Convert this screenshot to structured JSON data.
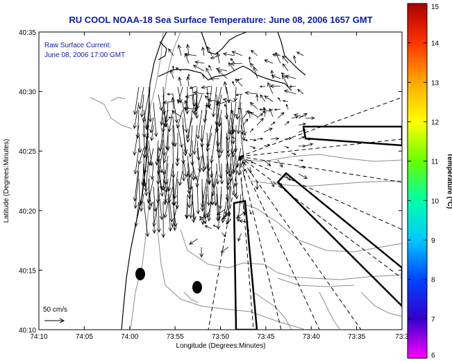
{
  "title": "RU COOL  NOAA-18  Sea Surface Temperature:  June 08, 2006 1657 GMT",
  "annotation": {
    "line1": "Raw Surface Current:",
    "line2": "June 08, 2006 17:00 GMT",
    "scale_label": "50 cm/s"
  },
  "axes": {
    "xlabel": "Longitude (Degrees:Minutes)",
    "ylabel": "Latitude (Degrees:Minutes)",
    "x_ticks": [
      "74:10",
      "74:05",
      "74:00",
      "73:55",
      "73:50",
      "73:45",
      "73:40",
      "73:35",
      "73:3"
    ],
    "y_ticks": [
      "40:35",
      "40:30",
      "40:25",
      "40:20",
      "40:15",
      "40:10"
    ]
  },
  "colorbar": {
    "label": "Temperature (°C)",
    "ticks": [
      "15",
      "14",
      "13",
      "12",
      "11",
      "10",
      "9",
      "8",
      "7",
      "6"
    ],
    "range": [
      6,
      15
    ],
    "colors": [
      "#ff00ff",
      "#3300cc",
      "#0044ff",
      "#00c8ff",
      "#00ffaa",
      "#66ff00",
      "#ffff00",
      "#ffaa00",
      "#ff3300",
      "#aa0000"
    ]
  },
  "map_colors": {
    "land_outline": "#000000",
    "contours": "#8c8c8c",
    "vectors": "#000000"
  }
}
